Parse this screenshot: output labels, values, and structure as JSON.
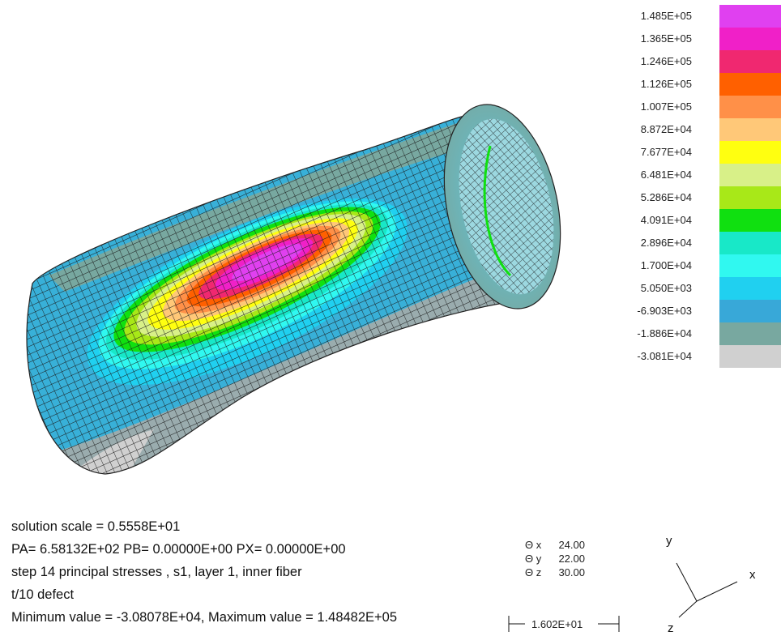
{
  "legend": {
    "items": [
      {
        "value": "1.485E+05",
        "color": "#e040f0"
      },
      {
        "value": "1.365E+05",
        "color": "#f020c8"
      },
      {
        "value": "1.246E+05",
        "color": "#f02870"
      },
      {
        "value": "1.126E+05",
        "color": "#ff6000"
      },
      {
        "value": "1.007E+05",
        "color": "#ff9048"
      },
      {
        "value": "8.872E+04",
        "color": "#ffc878"
      },
      {
        "value": "7.677E+04",
        "color": "#ffff10"
      },
      {
        "value": "6.481E+04",
        "color": "#d8f088"
      },
      {
        "value": "5.286E+04",
        "color": "#a8e818"
      },
      {
        "value": "4.091E+04",
        "color": "#10e010"
      },
      {
        "value": "2.896E+04",
        "color": "#18e8c8"
      },
      {
        "value": "1.700E+04",
        "color": "#30f8f0"
      },
      {
        "value": "5.050E+03",
        "color": "#20d0f0"
      },
      {
        "value": "-6.903E+03",
        "color": "#38a8d8"
      },
      {
        "value": "-1.886E+04",
        "color": "#78a8a0"
      },
      {
        "value": "-3.081E+04",
        "color": "#d0d0d0"
      }
    ]
  },
  "info": {
    "line1": "solution scale =  0.5558E+01",
    "line2": "PA=  6.58132E+02  PB=  0.00000E+00  PX=  0.00000E+00",
    "line3": "step   14  principal stresses , s1,  layer  1,  inner fiber",
    "line4": "t/10 defect",
    "line5": "Minimum value = -3.08078E+04,   Maximum value =  1.48482E+05"
  },
  "view_angles": [
    {
      "symbol": "Θ",
      "axis": "x",
      "value": "24.00"
    },
    {
      "symbol": "Θ",
      "axis": "y",
      "value": "22.00"
    },
    {
      "symbol": "Θ",
      "axis": "z",
      "value": "30.00"
    }
  ],
  "scale_bar": {
    "label": "1.602E+01"
  },
  "triad": {
    "x": "x",
    "y": "y",
    "z": "z"
  }
}
